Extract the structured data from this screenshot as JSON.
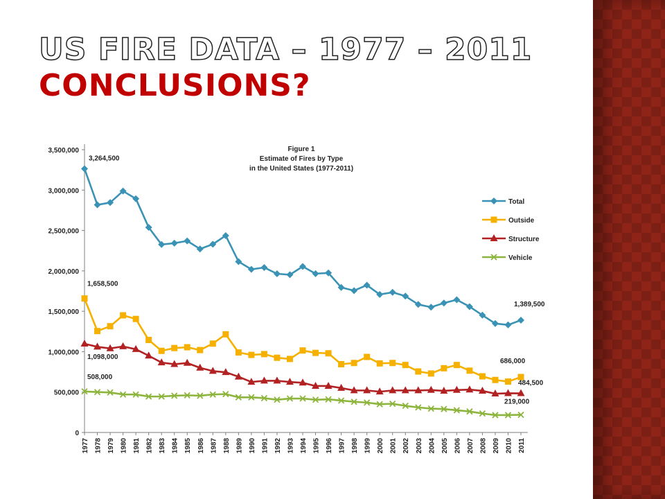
{
  "slide": {
    "title_line1": "US Fire Data – 1977 – 2011",
    "title_line2": "Conclusions?"
  },
  "colors": {
    "total": "#3a93b5",
    "outside": "#f5b000",
    "structure": "#b22222",
    "vehicle": "#8db43c",
    "title_red": "#c00000",
    "panel": "#8e2418"
  },
  "chart_data": {
    "type": "line",
    "title": "Figure 1",
    "subtitle_lines": [
      "Estimate of Fires by Type",
      "in the United States (1977-2011)"
    ],
    "xlabel": "",
    "ylabel": "",
    "ylim": [
      0,
      3500000
    ],
    "yticks": [
      0,
      500000,
      1000000,
      1500000,
      2000000,
      2500000,
      3000000,
      3500000
    ],
    "ytick_labels": [
      "0",
      "500,000",
      "1,000,000",
      "1,500,000",
      "2,000,000",
      "2,500,000",
      "3,000,000",
      "3,500,000"
    ],
    "legend_position": "right",
    "grid": false,
    "x": [
      "1977",
      "1978",
      "1979",
      "1980",
      "1981",
      "1982",
      "1983",
      "1984",
      "1985",
      "1986",
      "1987",
      "1988",
      "1989",
      "1990",
      "1991",
      "1992",
      "1993",
      "1994",
      "1995",
      "1996",
      "1997",
      "1998",
      "1999",
      "2000",
      "2001",
      "2002",
      "2003",
      "2004",
      "2005",
      "2006",
      "2007",
      "2008",
      "2009",
      "2010",
      "2011"
    ],
    "series": [
      {
        "name": "Total",
        "color": "#3a93b5",
        "marker": "diamond",
        "values": [
          3264500,
          2817500,
          2845500,
          2988000,
          2893500,
          2538000,
          2326500,
          2343000,
          2371000,
          2271500,
          2330000,
          2436500,
          2115000,
          2019000,
          2041500,
          1964500,
          1952500,
          2054500,
          1965500,
          1975000,
          1795000,
          1755500,
          1823000,
          1708000,
          1734500,
          1687500,
          1584500,
          1550500,
          1602000,
          1642500,
          1557500,
          1451500,
          1348500,
          1331500,
          1389500
        ]
      },
      {
        "name": "Outside",
        "color": "#f5b000",
        "marker": "square",
        "values": [
          1658500,
          1255000,
          1315000,
          1450000,
          1405000,
          1145000,
          1010000,
          1045000,
          1055000,
          1020000,
          1100000,
          1215000,
          990000,
          960000,
          970000,
          925000,
          910000,
          1015000,
          985000,
          980000,
          845000,
          860000,
          935000,
          855000,
          860000,
          835000,
          755000,
          730000,
          795000,
          835000,
          765000,
          695000,
          650000,
          630000,
          686000
        ]
      },
      {
        "name": "Structure",
        "color": "#b22222",
        "marker": "triangle",
        "values": [
          1098000,
          1060000,
          1040000,
          1065000,
          1030000,
          950000,
          865000,
          845000,
          860000,
          800000,
          760000,
          745000,
          690000,
          625000,
          640000,
          640000,
          625000,
          615000,
          575000,
          575000,
          550000,
          520000,
          520000,
          505000,
          520000,
          520000,
          520000,
          525000,
          515000,
          525000,
          530000,
          515000,
          480000,
          485000,
          484500
        ]
      },
      {
        "name": "Vehicle",
        "color": "#8db43c",
        "marker": "x",
        "values": [
          508000,
          500000,
          495000,
          470000,
          470000,
          445000,
          445000,
          455000,
          460000,
          455000,
          470000,
          475000,
          435000,
          435000,
          425000,
          405000,
          420000,
          420000,
          405000,
          410000,
          395000,
          380000,
          370000,
          350000,
          355000,
          330000,
          310000,
          295000,
          290000,
          275000,
          260000,
          235000,
          215000,
          215000,
          219000
        ]
      }
    ],
    "annotations": [
      {
        "series": "Total",
        "index": 0,
        "text": "3,264,500"
      },
      {
        "series": "Outside",
        "index": 0,
        "text": "1,658,500"
      },
      {
        "series": "Structure",
        "index": 0,
        "text": "1,098,000"
      },
      {
        "series": "Vehicle",
        "index": 0,
        "text": "508,000"
      },
      {
        "series": "Total",
        "index": 34,
        "text": "1,389,500"
      },
      {
        "series": "Outside",
        "index": 34,
        "text": "686,000"
      },
      {
        "series": "Structure",
        "index": 34,
        "text": "484,500"
      },
      {
        "series": "Vehicle",
        "index": 34,
        "text": "219,000"
      }
    ]
  }
}
